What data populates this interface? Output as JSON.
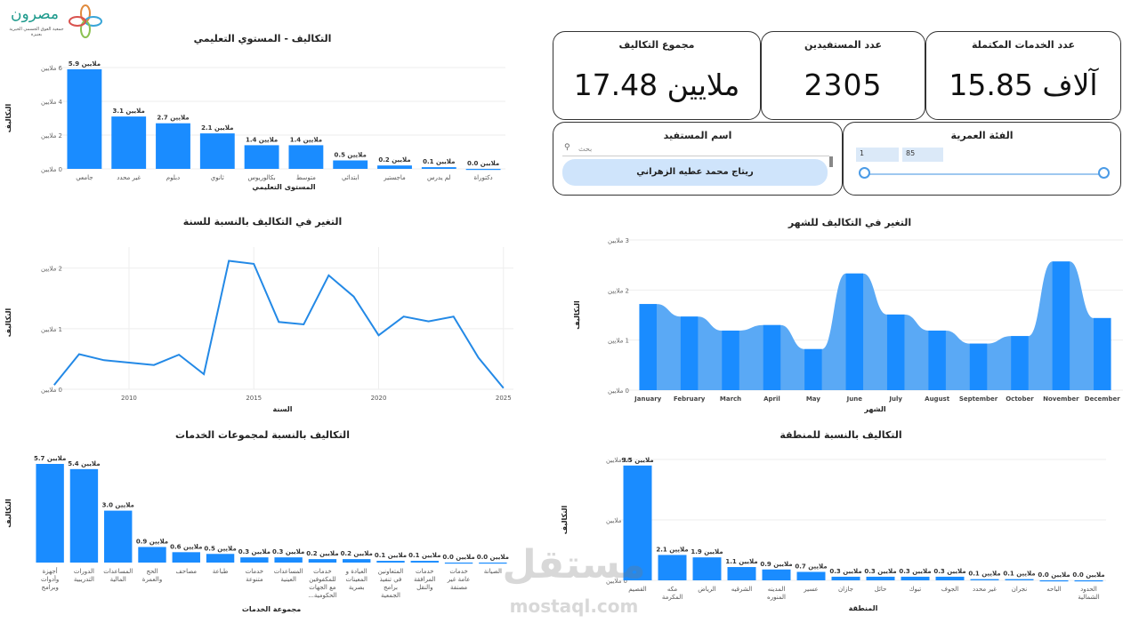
{
  "header": {
    "logo_text": "مصرون",
    "logo_subtext": "جمعية العوق الجسمي الخيرية بعنيزة"
  },
  "kpis": {
    "total_costs": {
      "title": "مجموع التكاليف",
      "value": "ملايين 17.48"
    },
    "beneficiaries": {
      "title": "عدد المستفيدين",
      "value": "2305"
    },
    "completed_services": {
      "title": "عدد الخدمات المكتملة",
      "value": "آلاف 15.85"
    }
  },
  "filters": {
    "beneficiary": {
      "title": "اسم المستفيد",
      "search_placeholder": "بحث",
      "selected": "ريتاج محمد عطيه الزهراني"
    },
    "age_group": {
      "title": "الفئة العمرية",
      "min": "1",
      "max": "85"
    }
  },
  "colors": {
    "bar": "#1a8cff",
    "bar_light": "#5aa9f5",
    "line": "#2389e6",
    "card_border": "#333333"
  },
  "watermark": {
    "text_ar": "مستقل",
    "text_en": "mostaql.com"
  },
  "chart_data": [
    {
      "id": "education",
      "type": "bar",
      "title": "التكاليف - المستوي التعليمي",
      "xlabel": "المستوى التعليمي",
      "ylabel": "التكاليف",
      "yticks": [
        "0 ملايين",
        "2 ملايين",
        "4 ملايين",
        "6 ملايين"
      ],
      "ylim": [
        0,
        6
      ],
      "categories": [
        "جامعي",
        "غير محدد",
        "دبلوم",
        "ثانوي",
        "بكالوريوس",
        "متوسط",
        "ابتدائي",
        "ماجستير",
        "لم يدرس",
        "دكتوراة"
      ],
      "values": [
        5.9,
        3.1,
        2.7,
        2.1,
        1.4,
        1.4,
        0.5,
        0.2,
        0.1,
        0.0
      ],
      "value_labels": [
        "ملايين 5.9",
        "ملايين 3.1",
        "ملايين 2.7",
        "ملايين 2.1",
        "ملايين 1.4",
        "ملايين 1.4",
        "ملايين 0.5",
        "ملايين 0.2",
        "ملايين 0.1",
        "ملايين 0.0"
      ]
    },
    {
      "id": "year",
      "type": "line",
      "title": "التغير في التكاليف بالنسبة للسنة",
      "xlabel": "السنة",
      "ylabel": "التكاليف",
      "xticks": [
        "2010",
        "2015",
        "2020",
        "2025"
      ],
      "yticks": [
        "0 ملايين",
        "1 ملايين",
        "2 ملايين"
      ],
      "xlim": [
        2006.9,
        2025.4
      ],
      "ylim": [
        0,
        2.2
      ],
      "x": [
        2007,
        2008,
        2009,
        2010,
        2011,
        2012,
        2013,
        2014,
        2015,
        2016,
        2017,
        2018,
        2019,
        2020,
        2021,
        2022,
        2023,
        2024,
        2025
      ],
      "y": [
        0.07,
        0.58,
        0.48,
        0.44,
        0.4,
        0.57,
        0.25,
        2.12,
        2.07,
        1.11,
        1.07,
        1.88,
        1.53,
        0.89,
        1.2,
        1.12,
        1.2,
        0.52,
        0.02
      ]
    },
    {
      "id": "month",
      "type": "area",
      "title": "التغير في التكاليف للشهر",
      "xlabel": "الشهر",
      "ylabel": "التكاليف",
      "yticks": [
        "0 ملايين",
        "1 ملايين",
        "2 ملايين",
        "3 ملايين"
      ],
      "ylim": [
        0,
        3
      ],
      "categories": [
        "January",
        "February",
        "March",
        "April",
        "May",
        "June",
        "July",
        "August",
        "September",
        "October",
        "November",
        "December"
      ],
      "values": [
        1.72,
        1.47,
        1.19,
        1.3,
        0.82,
        2.33,
        1.51,
        1.19,
        0.93,
        1.08,
        2.57,
        1.44
      ]
    },
    {
      "id": "services",
      "type": "bar",
      "title": "التكاليف بالنسبة لمجموعات الخدمات",
      "xlabel": "مجموعة الخدمات",
      "ylabel": "التكاليف",
      "ylim": [
        0,
        5.7
      ],
      "categories": [
        [
          "أجهزة",
          "وأدوات",
          "وبرامج"
        ],
        [
          "الدورات",
          "التدريبية"
        ],
        [
          "المساعدات",
          "المالية"
        ],
        [
          "الحج",
          "والعمرة"
        ],
        [
          "مصاحف"
        ],
        [
          "طباعة"
        ],
        [
          "خدمات",
          "متنوعة"
        ],
        [
          "المساعدات",
          "العينية"
        ],
        [
          "خدمات",
          "للمكفوفين",
          "مع الجهات",
          "الحكومية..."
        ],
        [
          "العيادة و",
          "المعينات",
          "بصرية"
        ],
        [
          "المتعاونين",
          "في تنفيذ",
          "برامج",
          "الجمعية"
        ],
        [
          "خدمات",
          "المرافقة",
          "والنقل"
        ],
        [
          "خدمات",
          "عامة غير",
          "مصنفة"
        ],
        [
          "الصيانة"
        ]
      ],
      "values": [
        5.7,
        5.4,
        3.0,
        0.9,
        0.6,
        0.5,
        0.3,
        0.3,
        0.2,
        0.2,
        0.1,
        0.1,
        0.0,
        0.0
      ],
      "value_labels": [
        "ملايين 5.7",
        "ملايين 5.4",
        "ملايين 3.0",
        "ملايين 0.9",
        "ملايين 0.6",
        "ملايين 0.5",
        "ملايين 0.3",
        "ملايين 0.3",
        "ملايين 0.2",
        "ملايين 0.2",
        "ملايين 0.1",
        "ملايين 0.1",
        "ملايين 0.0",
        "ملايين 0.0"
      ]
    },
    {
      "id": "region",
      "type": "bar",
      "title": "التكاليف بالنسبة للمنطقة",
      "xlabel": "المنطقة",
      "ylabel": "التكاليف",
      "yticks": [
        "0 ملايين",
        "5 ملايين",
        "10 ملايين"
      ],
      "ylim": [
        0,
        10
      ],
      "categories": [
        [
          "القصيم"
        ],
        [
          "مكه",
          "المكرمة"
        ],
        [
          "الرياض"
        ],
        [
          "الشرقيه"
        ],
        [
          "المدينه",
          "المنوره"
        ],
        [
          "عسير"
        ],
        [
          "جازان"
        ],
        [
          "حائل"
        ],
        [
          "تبوك"
        ],
        [
          "الجوف"
        ],
        [
          "غير محدد"
        ],
        [
          "نجران"
        ],
        [
          "الباحه"
        ],
        [
          "الحدود",
          "الشمالية"
        ]
      ],
      "values": [
        9.5,
        2.1,
        1.9,
        1.1,
        0.9,
        0.7,
        0.3,
        0.3,
        0.3,
        0.3,
        0.1,
        0.1,
        0.0,
        0.0
      ],
      "value_labels": [
        "ملايين 9.5",
        "ملايين 2.1",
        "ملايين 1.9",
        "ملايين 1.1",
        "ملايين 0.9",
        "ملايين 0.7",
        "ملايين 0.3",
        "ملايين 0.3",
        "ملايين 0.3",
        "ملايين 0.3",
        "ملايين 0.1",
        "ملايين 0.1",
        "ملايين 0.0",
        "ملايين 0.0"
      ]
    }
  ]
}
